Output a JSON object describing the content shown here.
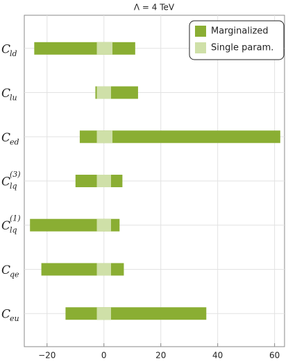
{
  "chart_data": {
    "type": "range-bar",
    "title": "Λ = 4 TeV",
    "categories": [
      {
        "main": "C",
        "sub": "ld"
      },
      {
        "main": "C",
        "sub": "lu"
      },
      {
        "main": "C",
        "sub": "ed"
      },
      {
        "main": "C",
        "sub": "lq",
        "sup": "(3)"
      },
      {
        "main": "C",
        "sub": "lq",
        "sup": "(1)"
      },
      {
        "main": "C",
        "sub": "qe"
      },
      {
        "main": "C",
        "sub": "eu"
      }
    ],
    "series": [
      {
        "name": "Marginalized",
        "color": "#8aae33",
        "values": [
          [
            -24.5,
            11
          ],
          [
            -3,
            12
          ],
          [
            -8.5,
            62
          ],
          [
            -10,
            6.5
          ],
          [
            -26,
            5.5
          ],
          [
            -22,
            7
          ],
          [
            -13.5,
            36
          ]
        ]
      },
      {
        "name": "Single param.",
        "color": "#cfe0a8",
        "values": [
          [
            -2.5,
            3
          ],
          [
            -2.5,
            2.5
          ],
          [
            -2.5,
            3
          ],
          [
            -2.5,
            2.5
          ],
          [
            -2.5,
            2.5
          ],
          [
            -2.5,
            2.5
          ],
          [
            -2.5,
            2.5
          ]
        ]
      }
    ],
    "xlim": [
      -28,
      63.5
    ],
    "xticks": [
      {
        "value": -20,
        "label": "−20"
      },
      0,
      20,
      40,
      60
    ],
    "grid": true,
    "legend": "top-right"
  }
}
